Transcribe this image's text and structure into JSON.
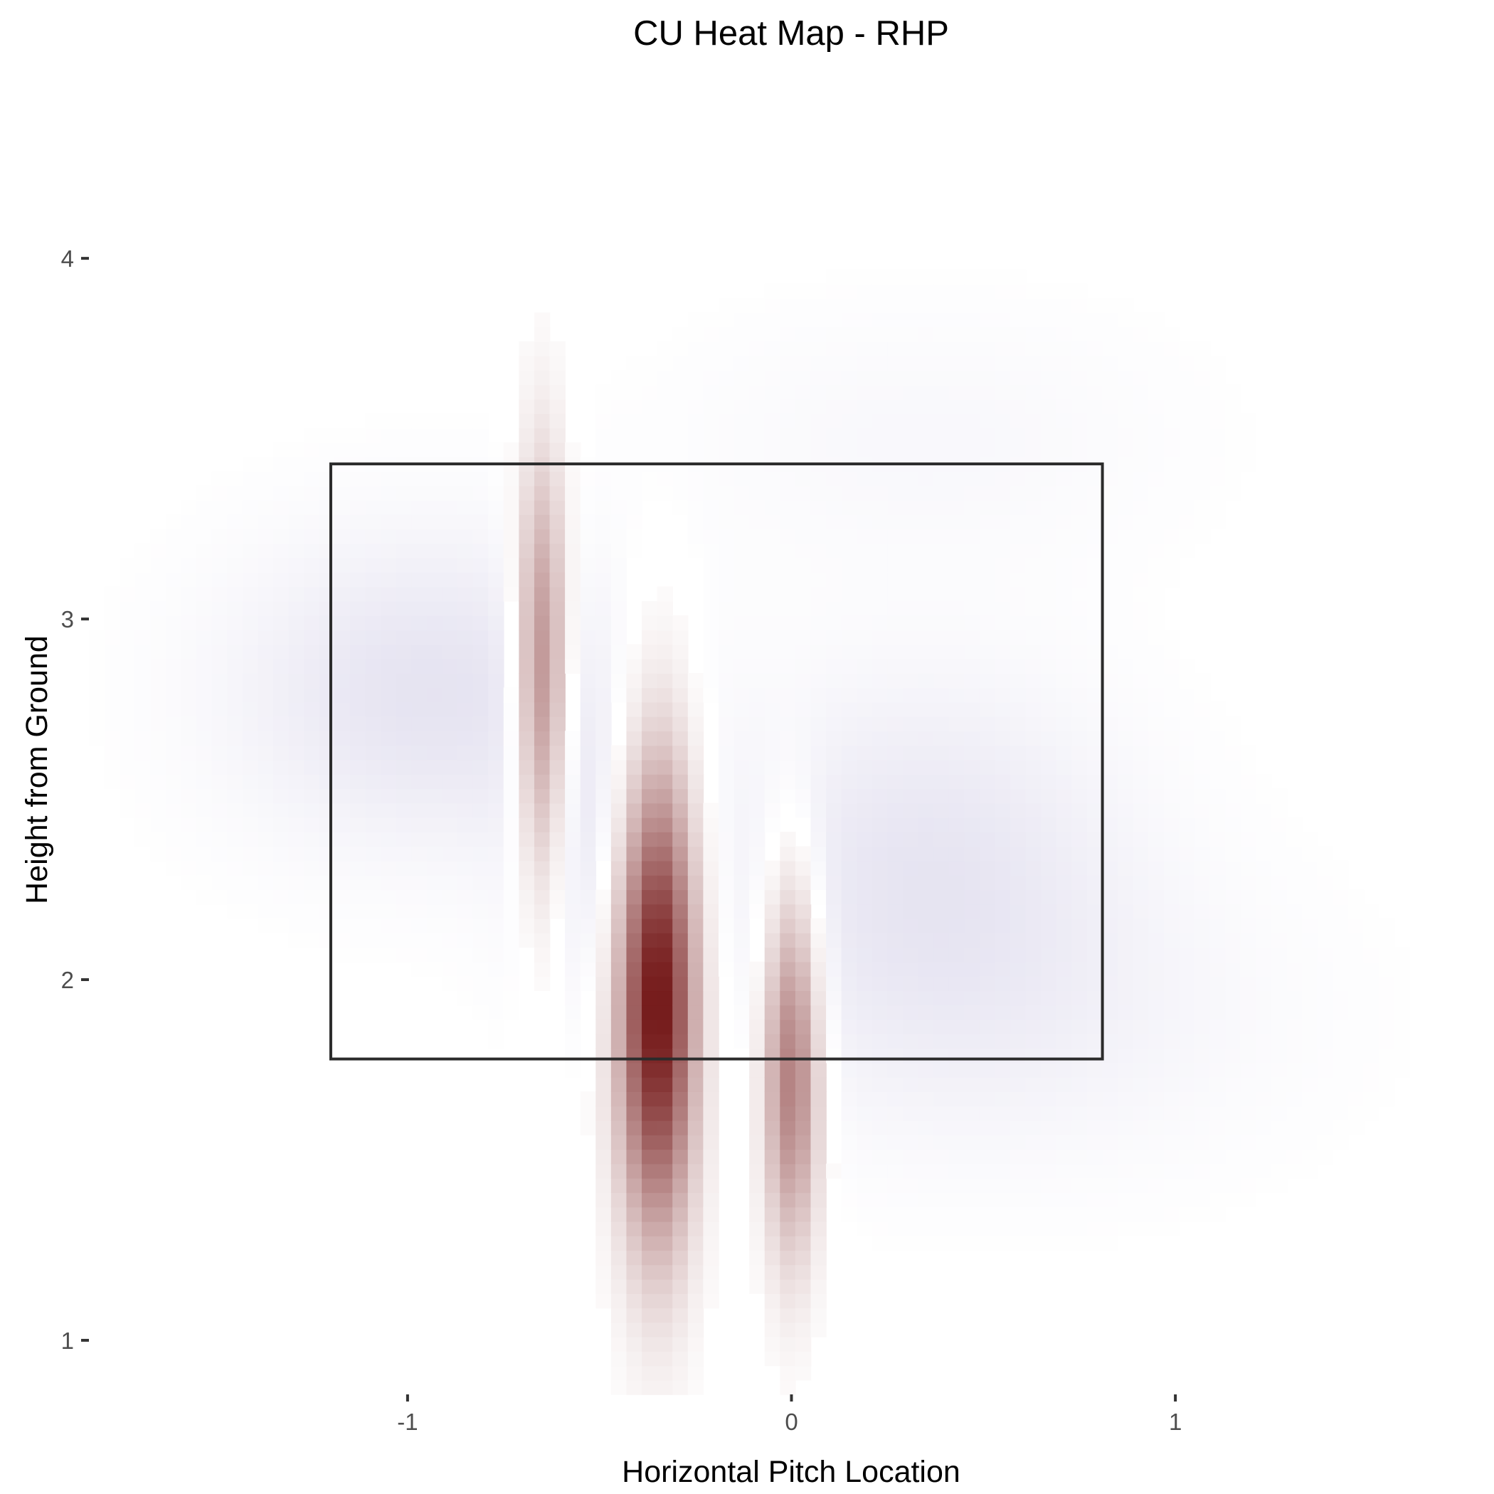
{
  "chart_data": {
    "type": "heatmap",
    "title": "CU Heat Map - RHP",
    "xlabel": "Horizontal Pitch Location",
    "ylabel": "Height from Ground",
    "xlim": [
      -1.83,
      1.83
    ],
    "ylim": [
      0.85,
      4.45
    ],
    "x_ticks": [
      {
        "value": -1,
        "label": "-1"
      },
      {
        "value": 0,
        "label": "0"
      },
      {
        "value": 1,
        "label": "1"
      }
    ],
    "y_ticks": [
      {
        "value": 1,
        "label": "1"
      },
      {
        "value": 2,
        "label": "2"
      },
      {
        "value": 3,
        "label": "3"
      },
      {
        "value": 4,
        "label": "4"
      }
    ],
    "strike_zone": {
      "x": [
        -1.2,
        0.81
      ],
      "y": [
        1.78,
        3.43
      ]
    },
    "grid": false,
    "legend": "none",
    "color_scale": {
      "low": "#2c1a8c",
      "mid": "#ffffff",
      "high": "#6b0a0a"
    },
    "density_components": [
      {
        "x": -0.65,
        "y": 2.85,
        "sx": 0.045,
        "sy": 0.4,
        "value": 0.5
      },
      {
        "x": -0.35,
        "y": 1.95,
        "sx": 0.07,
        "sy": 0.45,
        "value": 1.0
      },
      {
        "x": 0.0,
        "y": 1.75,
        "sx": 0.05,
        "sy": 0.35,
        "value": 0.55
      },
      {
        "x": -0.95,
        "y": 2.8,
        "sx": 0.35,
        "sy": 0.3,
        "value": -0.12
      },
      {
        "x": 0.35,
        "y": 2.35,
        "sx": 0.35,
        "sy": 0.35,
        "value": -0.1
      },
      {
        "x": -0.5,
        "y": 2.35,
        "sx": 0.15,
        "sy": 0.3,
        "value": -0.08
      },
      {
        "x": 0.55,
        "y": 1.9,
        "sx": 0.5,
        "sy": 0.3,
        "value": -0.05
      },
      {
        "x": 0.35,
        "y": 3.5,
        "sx": 0.45,
        "sy": 0.25,
        "value": -0.03
      }
    ]
  }
}
